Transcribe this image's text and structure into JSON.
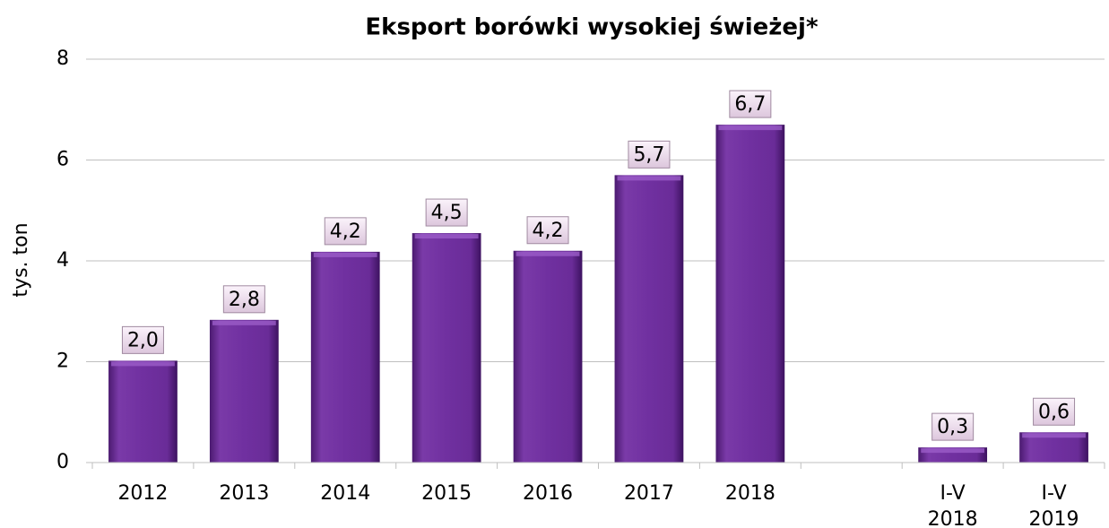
{
  "chart_data": {
    "type": "bar",
    "title": "Eksport borówki wysokiej świeżej*",
    "y_label": "tys. ton",
    "categories": [
      "2012",
      "2013",
      "2014",
      "2015",
      "2016",
      "2017",
      "2018",
      null,
      "I-V 2018",
      "I-V 2019"
    ],
    "values": [
      2.02,
      2.83,
      4.18,
      4.55,
      4.2,
      5.7,
      6.7,
      null,
      0.3,
      0.6
    ],
    "value_labels": [
      "2,0",
      "2,8",
      "4,2",
      "4,5",
      "4,2",
      "5,7",
      "6,7",
      null,
      "0,3",
      "0,6"
    ],
    "color": "#7030a0",
    "ylim": [
      0,
      8
    ],
    "yticks": [
      0,
      2,
      4,
      6,
      8
    ],
    "grid": true
  }
}
